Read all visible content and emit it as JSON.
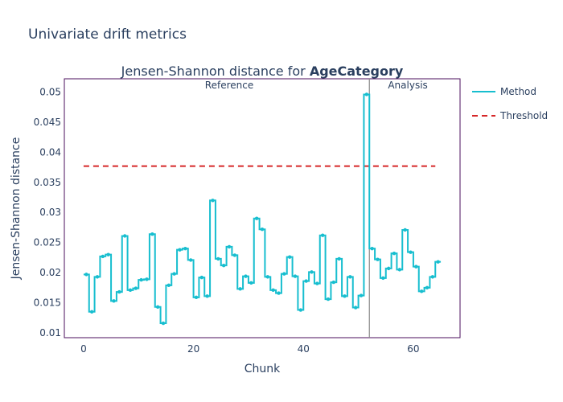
{
  "page_title": "Univariate drift metrics",
  "chart_data": {
    "type": "line",
    "title_prefix": "Jensen-Shannon distance for ",
    "title_feature": "AgeCategory",
    "xlabel": "Chunk",
    "ylabel": "Jensen-Shannon distance",
    "xlim": [
      -3.5,
      68.5
    ],
    "ylim": [
      0.0092,
      0.0522
    ],
    "x_ticks": [
      0,
      20,
      40,
      60
    ],
    "x_tick_labels": [
      "0",
      "20",
      "40",
      "60"
    ],
    "y_ticks": [
      0.01,
      0.015,
      0.02,
      0.025,
      0.03,
      0.035,
      0.04,
      0.045,
      0.05
    ],
    "y_tick_labels": [
      "0.01",
      "0.015",
      "0.02",
      "0.025",
      "0.03",
      "0.035",
      "0.04",
      "0.045",
      "0.05"
    ],
    "grid": false,
    "legend_position": "top-right",
    "split_at": 52,
    "period_labels": [
      "Reference",
      "Analysis"
    ],
    "series": [
      {
        "name": "Method",
        "color": "#17becf",
        "style": "step",
        "values": [
          0.0197,
          0.0135,
          0.0193,
          0.0227,
          0.023,
          0.0153,
          0.0168,
          0.0261,
          0.0171,
          0.0174,
          0.0188,
          0.0189,
          0.0264,
          0.0143,
          0.0116,
          0.0179,
          0.0198,
          0.0238,
          0.024,
          0.0221,
          0.0159,
          0.0192,
          0.0161,
          0.032,
          0.0223,
          0.0212,
          0.0243,
          0.0229,
          0.0173,
          0.0194,
          0.0183,
          0.029,
          0.0272,
          0.0193,
          0.0171,
          0.0166,
          0.0198,
          0.0226,
          0.0194,
          0.0138,
          0.0186,
          0.0201,
          0.0182,
          0.0262,
          0.0156,
          0.0184,
          0.0223,
          0.0161,
          0.0193,
          0.0142,
          0.0162,
          0.0496,
          0.024,
          0.0222,
          0.0191,
          0.0207,
          0.0232,
          0.0205,
          0.0271,
          0.0234,
          0.021,
          0.0169,
          0.0175,
          0.0193,
          0.0218
        ]
      },
      {
        "name": "Threshold",
        "color": "#d62728",
        "style": "dash",
        "value": 0.0377,
        "x_range": [
          0,
          64
        ]
      }
    ]
  }
}
